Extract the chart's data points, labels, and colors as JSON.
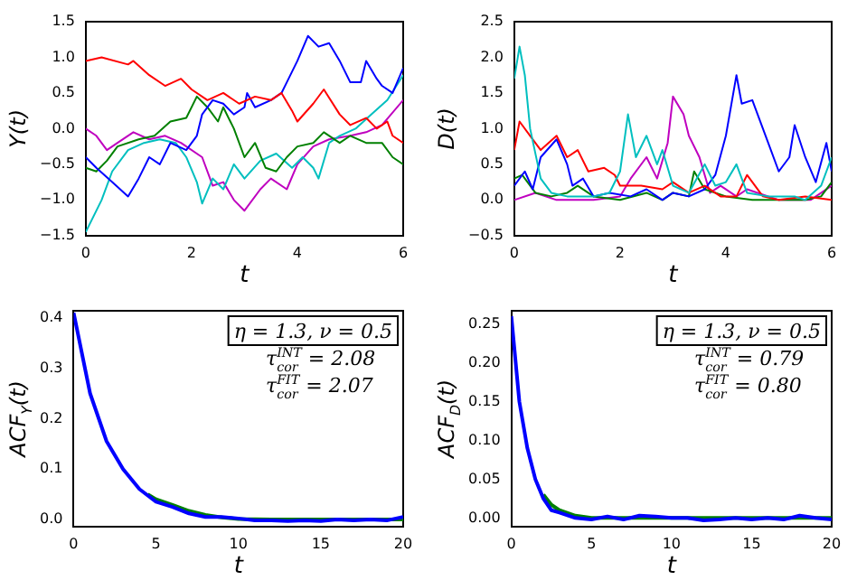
{
  "chart_data": [
    {
      "type": "line",
      "xlabel": "t",
      "ylabel": "Y(t)",
      "xlim": [
        0,
        6
      ],
      "xticks": [
        0,
        2,
        4,
        6
      ],
      "ylim": [
        -1.5,
        1.5
      ],
      "yticks": [
        {
          "value": -1.5,
          "label": "−1.5"
        },
        {
          "value": -1,
          "label": "−1.0"
        },
        {
          "value": -0.5,
          "label": "−0.5"
        },
        {
          "value": 0,
          "label": "0.0"
        },
        {
          "value": 0.5,
          "label": "0.5"
        },
        {
          "value": 1,
          "label": "1.0"
        },
        {
          "value": 1.5,
          "label": "1.5"
        }
      ],
      "grid": false,
      "legend": false,
      "marker": "none",
      "line_style": "solid",
      "series": [
        {
          "color": "#ff0000",
          "x": [
            0,
            0.3,
            0.8,
            0.9,
            1.2,
            1.5,
            1.8,
            2.0,
            2.3,
            2.6,
            2.9,
            3.2,
            3.5,
            3.7,
            3.9,
            4.0,
            4.3,
            4.5,
            4.8,
            5.0,
            5.3,
            5.5,
            5.7,
            5.8,
            6.0
          ],
          "values": [
            0.95,
            1.0,
            0.9,
            0.95,
            0.75,
            0.6,
            0.7,
            0.55,
            0.4,
            0.5,
            0.35,
            0.45,
            0.4,
            0.5,
            0.25,
            0.1,
            0.35,
            0.55,
            0.2,
            0.05,
            0.15,
            0.0,
            0.1,
            -0.1,
            -0.2
          ]
        },
        {
          "color": "#0000ff",
          "x": [
            0,
            0.2,
            0.5,
            0.8,
            1.0,
            1.2,
            1.4,
            1.6,
            1.9,
            2.1,
            2.2,
            2.4,
            2.6,
            2.8,
            3.0,
            3.05,
            3.2,
            3.5,
            3.7,
            3.8,
            4.0,
            4.2,
            4.4,
            4.6,
            4.8,
            5.0,
            5.2,
            5.3,
            5.5,
            5.6,
            5.8,
            6.0
          ],
          "values": [
            -0.4,
            -0.55,
            -0.75,
            -0.95,
            -0.7,
            -0.4,
            -0.5,
            -0.2,
            -0.3,
            -0.1,
            0.2,
            0.4,
            0.35,
            0.2,
            0.3,
            0.5,
            0.3,
            0.4,
            0.5,
            0.65,
            0.95,
            1.3,
            1.15,
            1.2,
            0.95,
            0.65,
            0.65,
            0.95,
            0.7,
            0.6,
            0.5,
            0.85
          ]
        },
        {
          "color": "#008000",
          "x": [
            0,
            0.2,
            0.4,
            0.6,
            1.0,
            1.3,
            1.6,
            1.9,
            2.1,
            2.3,
            2.5,
            2.6,
            2.8,
            3.0,
            3.2,
            3.4,
            3.6,
            3.8,
            4.0,
            4.3,
            4.5,
            4.8,
            5.0,
            5.3,
            5.6,
            5.8,
            6.0
          ],
          "values": [
            -0.55,
            -0.6,
            -0.45,
            -0.25,
            -0.15,
            -0.1,
            0.1,
            0.15,
            0.45,
            0.3,
            0.1,
            0.3,
            0.0,
            -0.4,
            -0.2,
            -0.55,
            -0.6,
            -0.4,
            -0.25,
            -0.2,
            -0.05,
            -0.2,
            -0.1,
            -0.2,
            -0.2,
            -0.4,
            -0.5
          ]
        },
        {
          "color": "#00bfbf",
          "x": [
            0,
            0.3,
            0.5,
            0.8,
            1.1,
            1.4,
            1.7,
            1.9,
            2.1,
            2.2,
            2.4,
            2.6,
            2.8,
            3.0,
            3.3,
            3.6,
            3.9,
            4.1,
            4.3,
            4.4,
            4.6,
            4.8,
            5.1,
            5.4,
            5.7,
            6.0
          ],
          "values": [
            -1.45,
            -1.0,
            -0.6,
            -0.3,
            -0.2,
            -0.15,
            -0.2,
            -0.4,
            -0.75,
            -1.05,
            -0.7,
            -0.85,
            -0.5,
            -0.7,
            -0.45,
            -0.35,
            -0.55,
            -0.4,
            -0.55,
            -0.7,
            -0.2,
            -0.1,
            0.0,
            0.2,
            0.4,
            0.75
          ]
        },
        {
          "color": "#bf00bf",
          "x": [
            0,
            0.2,
            0.4,
            0.6,
            0.9,
            1.2,
            1.5,
            1.8,
            2.2,
            2.4,
            2.6,
            2.8,
            3.0,
            3.3,
            3.5,
            3.8,
            4.0,
            4.3,
            4.6,
            5.0,
            5.3,
            5.6,
            6.0
          ],
          "values": [
            0.0,
            -0.1,
            -0.3,
            -0.2,
            -0.05,
            -0.15,
            -0.1,
            -0.2,
            -0.4,
            -0.8,
            -0.75,
            -1.0,
            -1.15,
            -0.85,
            -0.7,
            -0.85,
            -0.5,
            -0.25,
            -0.15,
            -0.1,
            -0.05,
            0.05,
            0.4
          ]
        }
      ]
    },
    {
      "type": "line",
      "xlabel": "t",
      "ylabel": "D(t)",
      "xlim": [
        0,
        6
      ],
      "xticks": [
        0,
        2,
        4,
        6
      ],
      "ylim": [
        -0.5,
        2.5
      ],
      "yticks": [
        {
          "value": -0.5,
          "label": "−0.5"
        },
        {
          "value": 0,
          "label": "0.0"
        },
        {
          "value": 0.5,
          "label": "0.5"
        },
        {
          "value": 1,
          "label": "1.0"
        },
        {
          "value": 1.5,
          "label": "1.5"
        },
        {
          "value": 2,
          "label": "2.0"
        },
        {
          "value": 2.5,
          "label": "2.5"
        }
      ],
      "grid": false,
      "legend": false,
      "marker": "none",
      "line_style": "solid",
      "series": [
        {
          "color": "#00bfbf",
          "x": [
            0,
            0.1,
            0.2,
            0.3,
            0.5,
            0.7,
            1.0,
            1.5,
            1.8,
            2.0,
            2.15,
            2.3,
            2.5,
            2.7,
            2.8,
            3.0,
            3.3,
            3.6,
            3.8,
            4.0,
            4.2,
            4.4,
            4.8,
            5.3,
            5.5,
            5.8,
            6.0
          ],
          "values": [
            1.7,
            2.15,
            1.75,
            1.0,
            0.3,
            0.1,
            0.05,
            0.05,
            0.1,
            0.4,
            1.2,
            0.6,
            0.9,
            0.5,
            0.7,
            0.2,
            0.1,
            0.5,
            0.2,
            0.25,
            0.5,
            0.1,
            0.05,
            0.05,
            0.0,
            0.2,
            0.6
          ]
        },
        {
          "color": "#ff0000",
          "x": [
            0,
            0.1,
            0.3,
            0.5,
            0.8,
            1.0,
            1.2,
            1.4,
            1.7,
            1.9,
            2.0,
            2.4,
            2.8,
            3.0,
            3.3,
            3.6,
            3.9,
            4.2,
            4.4,
            4.7,
            5.0,
            5.5,
            6.0
          ],
          "values": [
            0.7,
            1.1,
            0.9,
            0.7,
            0.9,
            0.6,
            0.7,
            0.4,
            0.45,
            0.35,
            0.2,
            0.2,
            0.15,
            0.25,
            0.1,
            0.2,
            0.05,
            0.05,
            0.35,
            0.05,
            0.0,
            0.05,
            0.0
          ]
        },
        {
          "color": "#0000ff",
          "x": [
            0,
            0.2,
            0.35,
            0.5,
            0.8,
            1.0,
            1.1,
            1.3,
            1.5,
            1.8,
            2.2,
            2.5,
            2.8,
            3.0,
            3.3,
            3.6,
            3.8,
            4.0,
            4.2,
            4.3,
            4.5,
            4.6,
            4.8,
            5.0,
            5.2,
            5.3,
            5.5,
            5.7,
            5.9,
            6.0
          ],
          "values": [
            0.2,
            0.4,
            0.15,
            0.6,
            0.85,
            0.5,
            0.2,
            0.3,
            0.05,
            0.1,
            0.05,
            0.15,
            0.0,
            0.1,
            0.05,
            0.15,
            0.35,
            0.9,
            1.75,
            1.35,
            1.4,
            1.2,
            0.8,
            0.4,
            0.6,
            1.05,
            0.6,
            0.25,
            0.8,
            0.4
          ]
        },
        {
          "color": "#008000",
          "x": [
            0,
            0.15,
            0.4,
            0.7,
            1.0,
            1.2,
            1.5,
            2.0,
            2.5,
            2.8,
            3.0,
            3.3,
            3.4,
            3.6,
            4.0,
            4.5,
            5.5,
            5.8,
            6.0
          ],
          "values": [
            0.3,
            0.35,
            0.1,
            0.05,
            0.1,
            0.2,
            0.05,
            0.0,
            0.1,
            0.0,
            0.1,
            0.05,
            0.4,
            0.15,
            0.05,
            0.0,
            0.0,
            0.05,
            0.25
          ]
        },
        {
          "color": "#bf00bf",
          "x": [
            0,
            0.4,
            0.8,
            1.5,
            2.0,
            2.2,
            2.5,
            2.7,
            2.9,
            3.0,
            3.2,
            3.3,
            3.5,
            3.7,
            3.9,
            4.2,
            4.4,
            4.6,
            5.0,
            5.6,
            6.0
          ],
          "values": [
            0.0,
            0.1,
            0.0,
            0.0,
            0.05,
            0.3,
            0.6,
            0.3,
            0.8,
            1.45,
            1.2,
            0.9,
            0.6,
            0.1,
            0.2,
            0.05,
            0.15,
            0.1,
            0.0,
            0.0,
            0.2
          ]
        }
      ]
    },
    {
      "type": "line",
      "xlabel": "t",
      "ylabel": "ACF$_{Y}$(t)",
      "xlim": [
        0,
        20
      ],
      "xticks": [
        0,
        5,
        10,
        15,
        20
      ],
      "ylim": [
        -0.014,
        0.414
      ],
      "yticks": [
        {
          "value": 0,
          "label": "0.0"
        },
        {
          "value": 0.1,
          "label": "0.1"
        },
        {
          "value": 0.2,
          "label": "0.2"
        },
        {
          "value": 0.3,
          "label": "0.3"
        },
        {
          "value": 0.4,
          "label": "0.4"
        }
      ],
      "grid": false,
      "legend": false,
      "marker": "none",
      "line_style": "solid",
      "annotations": [
        "η = 1.3, ν = 0.5",
        "τ$_{cor}$$^{INT}$ = 2.08",
        "τ$_{cor}$$^{FIT}$ = 2.07"
      ],
      "series": [
        {
          "color": "#0000ff",
          "x": [
            0,
            1,
            2,
            3,
            4,
            5,
            6,
            7,
            8,
            9,
            10,
            11,
            12,
            13,
            14,
            15,
            16,
            17,
            18,
            19,
            20
          ],
          "values": [
            0.41,
            0.25,
            0.155,
            0.1,
            0.06,
            0.035,
            0.025,
            0.012,
            0.005,
            0.005,
            0.002,
            -0.002,
            -0.002,
            -0.003,
            -0.002,
            -0.003,
            0.0,
            -0.002,
            0.0,
            -0.002,
            0.005
          ]
        },
        {
          "color": "#008000",
          "x": [
            4.5,
            5,
            6,
            7,
            8,
            9,
            10,
            12,
            14,
            16,
            18,
            20
          ],
          "values": [
            0.05,
            0.04,
            0.029,
            0.017,
            0.009,
            0.004,
            0.001,
            0.0,
            0.0,
            0.0,
            0.0,
            0.0
          ]
        }
      ]
    },
    {
      "type": "line",
      "xlabel": "t",
      "ylabel": "ACF$_{D}$(t)",
      "xlim": [
        0,
        20
      ],
      "xticks": [
        0,
        5,
        10,
        15,
        20
      ],
      "ylim": [
        -0.011,
        0.267
      ],
      "yticks": [
        {
          "value": 0,
          "label": "0.00"
        },
        {
          "value": 0.05,
          "label": "0.05"
        },
        {
          "value": 0.1,
          "label": "0.10"
        },
        {
          "value": 0.15,
          "label": "0.15"
        },
        {
          "value": 0.2,
          "label": "0.20"
        },
        {
          "value": 0.25,
          "label": "0.25"
        }
      ],
      "grid": false,
      "legend": false,
      "marker": "none",
      "line_style": "solid",
      "annotations": [
        "η = 1.3, ν = 0.5",
        "τ$_{cor}$$^{INT}$ = 0.79",
        "τ$_{cor}$$^{FIT}$ = 0.80"
      ],
      "series": [
        {
          "color": "#0000ff",
          "x": [
            0,
            0.5,
            1,
            1.5,
            2,
            2.5,
            3,
            4,
            5,
            6,
            7,
            8,
            9,
            10,
            11,
            12,
            13,
            14,
            15,
            16,
            17,
            18,
            19,
            20
          ],
          "values": [
            0.26,
            0.15,
            0.09,
            0.05,
            0.025,
            0.01,
            0.007,
            0.0,
            -0.002,
            0.002,
            -0.002,
            0.003,
            0.002,
            0.0,
            0.0,
            -0.003,
            -0.002,
            0.0,
            -0.002,
            0.0,
            -0.002,
            0.003,
            0.0,
            -0.002
          ]
        },
        {
          "color": "#008000",
          "x": [
            2,
            2.5,
            3,
            4,
            5,
            10,
            15,
            20
          ],
          "values": [
            0.03,
            0.017,
            0.01,
            0.003,
            0.0,
            0.0,
            0.0,
            0.0
          ]
        }
      ]
    }
  ]
}
